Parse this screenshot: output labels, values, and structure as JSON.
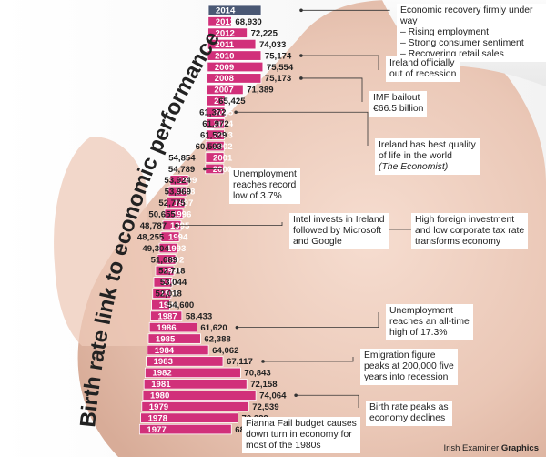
{
  "chart_data": {
    "type": "bar",
    "title": "Birth rate link to economic performance",
    "categories": [
      "2014",
      "2013",
      "2012",
      "2011",
      "2010",
      "2009",
      "2008",
      "2007",
      "2006",
      "2005",
      "2004",
      "2003",
      "2002",
      "2001",
      "2000",
      "1999",
      "1998",
      "1997",
      "1996",
      "1995",
      "1994",
      "1993",
      "1992",
      "1991",
      "1990",
      "1989",
      "1988",
      "1987",
      "1986",
      "1985",
      "1984",
      "1983",
      "1982",
      "1981",
      "1980",
      "1979",
      "1978",
      "1977"
    ],
    "values": [
      null,
      68930,
      72225,
      74033,
      75174,
      75554,
      75173,
      71389,
      65425,
      61372,
      61972,
      61529,
      60503,
      54854,
      54789,
      53924,
      53969,
      52775,
      50655,
      48787,
      48255,
      49304,
      51089,
      52718,
      53044,
      52018,
      54600,
      58433,
      61620,
      62388,
      64062,
      67117,
      70843,
      72158,
      74064,
      72539,
      70299,
      68892
    ],
    "value_labels": [
      "",
      "68,930",
      "72,225",
      "74,033",
      "75,174",
      "75,554",
      "75,173",
      "71,389",
      "65,425",
      "61,372",
      "61,972",
      "61,529",
      "60,503",
      "54,854",
      "54,789",
      "53,924",
      "53,969",
      "52,775",
      "50,655",
      "48,787",
      "48,255",
      "49,304",
      "51,089",
      "52,718",
      "53,044",
      "52,018",
      "54,600",
      "58,433",
      "61,620",
      "62,388",
      "64,062",
      "67,117",
      "70,843",
      "72,158",
      "74,064",
      "72,539",
      "70,299",
      "68,892"
    ],
    "bar_color": "#d1307a",
    "highlight_color": "#4a5874",
    "annotations": [
      {
        "id": "a2014",
        "lines": [
          "Economic recovery firmly under way",
          "– Rising employment",
          "– Strong consumer sentiment",
          "– Recovering retail sales"
        ]
      },
      {
        "id": "a2010",
        "lines": [
          "Ireland officially",
          "out of recession"
        ]
      },
      {
        "id": "a2008",
        "lines": [
          "IMF bailout",
          "€66.5 billion"
        ]
      },
      {
        "id": "a2005",
        "lines": [
          "Ireland has best quality",
          "of life in the world",
          "(The Economist)"
        ]
      },
      {
        "id": "a2000",
        "lines": [
          "Unemployment",
          "reaches record",
          "low of 3.7%"
        ]
      },
      {
        "id": "a1995",
        "lines": [
          "Intel invests in Ireland",
          "followed by Microsoft",
          "and Google"
        ]
      },
      {
        "id": "a1995b",
        "lines": [
          "High foreign investment",
          "and low corporate tax rate",
          "transforms economy"
        ]
      },
      {
        "id": "a1986",
        "lines": [
          "Unemployment",
          "reaches an all-time",
          "high of 17.3%"
        ]
      },
      {
        "id": "a1983",
        "lines": [
          "Emigration figure",
          "peaks at 200,000 five",
          "years into recession"
        ]
      },
      {
        "id": "a1980",
        "lines": [
          "Birth rate peaks as",
          "economy declines"
        ]
      },
      {
        "id": "a1977",
        "lines": [
          "Fianna Fail budget causes",
          "down turn in economy for",
          "most of the 1980s"
        ]
      }
    ],
    "credit": {
      "source": "Irish Examiner",
      "brand": "Graphics"
    }
  }
}
